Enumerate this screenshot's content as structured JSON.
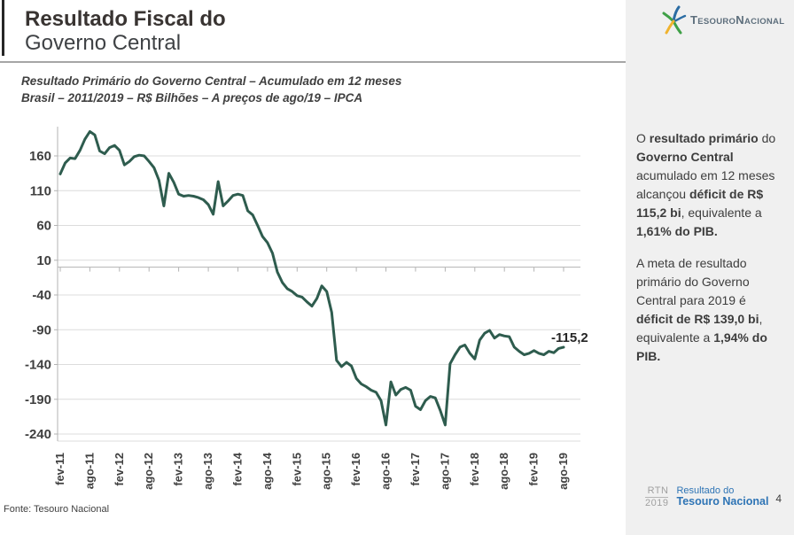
{
  "slide": {
    "title_line1": "Resultado Fiscal do",
    "title_line2": "Governo Central",
    "subtitle_line1": "Resultado Primário do Governo Central – Acumulado em 12 meses",
    "subtitle_line2": "Brasil – 2011/2019 – R$ Bilhões – A preços de ago/19 – IPCA",
    "source": "Fonte: Tesouro Nacional",
    "page_number": "4"
  },
  "logo": {
    "word1": "Tesouro",
    "word2": "Nacional"
  },
  "sidebar": {
    "paragraph1": [
      {
        "text": "O ",
        "bold": false
      },
      {
        "text": "resultado primário",
        "bold": true
      },
      {
        "text": " do ",
        "bold": false
      },
      {
        "text": "Governo Central",
        "bold": true
      },
      {
        "text": " acumulado em 12 meses alcançou ",
        "bold": false
      },
      {
        "text": "déficit de R$ 115,2 bi",
        "bold": true
      },
      {
        "text": ", equivalente a ",
        "bold": false
      },
      {
        "text": "1,61% do PIB.",
        "bold": true
      }
    ],
    "paragraph2": [
      {
        "text": "A meta de resultado primário do Governo Central para 2019 é ",
        "bold": false
      },
      {
        "text": "déficit de R$ 139,0 bi",
        "bold": true
      },
      {
        "text": ", equivalente a ",
        "bold": false
      },
      {
        "text": "1,94% do PIB.",
        "bold": true
      }
    ],
    "footer": {
      "rtn": "RTN",
      "year": "2019",
      "label_line1": "Resultado do",
      "label_line2": "Tesouro Nacional"
    }
  },
  "chart_data": {
    "type": "line",
    "title": "Resultado Primário do Governo Central – Acumulado em 12 meses",
    "xlabel": "",
    "ylabel": "R$ Bilhões (a preços de ago/19 – IPCA)",
    "x_start": "fev-11",
    "x_end": "ago-19",
    "x_tick_labels": [
      "fev-11",
      "ago-11",
      "fev-12",
      "ago-12",
      "fev-13",
      "ago-13",
      "fev-14",
      "ago-14",
      "fev-15",
      "ago-15",
      "fev-16",
      "ago-16",
      "fev-17",
      "ago-17",
      "fev-18",
      "ago-18",
      "fev-19",
      "ago-19"
    ],
    "x_tick_every": 6,
    "y_ticks": [
      160,
      110,
      60,
      10,
      -40,
      -90,
      -140,
      -190,
      -240
    ],
    "ylim": [
      -250,
      202
    ],
    "grid": true,
    "legend": false,
    "line_color": "#2e5c4e",
    "end_label": "-115,2",
    "end_value": -115.2,
    "values": [
      134,
      150,
      157,
      156,
      168,
      184,
      195,
      190,
      167,
      163,
      172,
      175,
      168,
      147,
      152,
      159,
      161,
      160,
      152,
      143,
      125,
      88,
      135,
      122,
      105,
      102,
      103,
      102,
      100,
      97,
      90,
      76,
      123,
      88,
      95,
      103,
      105,
      103,
      81,
      75,
      60,
      44,
      35,
      20,
      -7,
      -22,
      -31,
      -35,
      -41,
      -43,
      -50,
      -56,
      -45,
      -27,
      -35,
      -65,
      -134,
      -143,
      -137,
      -142,
      -160,
      -168,
      -172,
      -177,
      -180,
      -192,
      -227,
      -165,
      -184,
      -176,
      -173,
      -177,
      -200,
      -205,
      -192,
      -186,
      -188,
      -206,
      -227,
      -139,
      -126,
      -115,
      -112,
      -124,
      -132,
      -105,
      -95,
      -91,
      -102,
      -97,
      -99,
      -100,
      -115,
      -121,
      -126,
      -124,
      -120,
      -124,
      -126,
      -121,
      -123,
      -117,
      -115.2
    ]
  },
  "colors": {
    "line": "#2e5c4e",
    "grid": "#dcdcdc",
    "axis": "#b3b3b3",
    "sidebar_bg": "#f0f0f0",
    "footer_blue": "#2e74b5",
    "rule": "#a6a6a6",
    "logo_green": "#3fa047",
    "logo_blue": "#2b6ca3",
    "logo_yellow": "#f0b32e",
    "logo_text": "#5d6e7c"
  }
}
